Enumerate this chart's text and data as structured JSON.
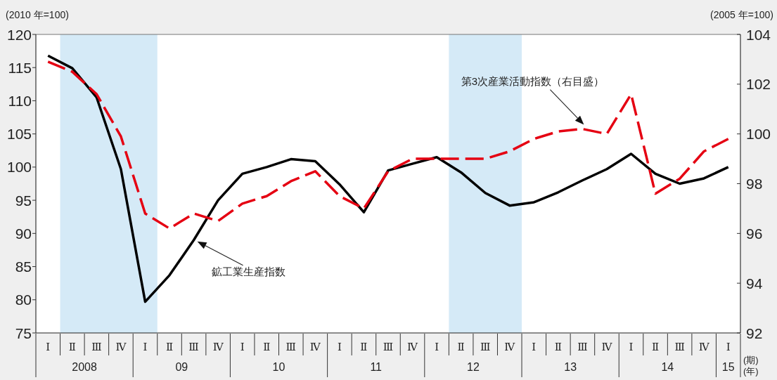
{
  "chart_data": {
    "type": "line",
    "ylabel": "(2010 年=100)",
    "y2label": "(2005 年=100)",
    "xlabel": "(期)",
    "categories": [
      "Ⅰ",
      "Ⅱ",
      "Ⅲ",
      "Ⅳ",
      "Ⅰ",
      "Ⅱ",
      "Ⅲ",
      "Ⅳ",
      "Ⅰ",
      "Ⅱ",
      "Ⅲ",
      "Ⅳ",
      "Ⅰ",
      "Ⅱ",
      "Ⅲ",
      "Ⅳ",
      "Ⅰ",
      "Ⅱ",
      "Ⅲ",
      "Ⅳ",
      "Ⅰ",
      "Ⅱ",
      "Ⅲ",
      "Ⅳ",
      "Ⅰ",
      "Ⅱ",
      "Ⅲ",
      "Ⅳ",
      "Ⅰ"
    ],
    "series": [
      {
        "name": "鉱工業生産指数",
        "color": "#000000",
        "line_style": "solid",
        "values": [
          116.8,
          114.9,
          110.5,
          99.7,
          79.7,
          83.7,
          89.0,
          95.0,
          99.0,
          100.0,
          101.2,
          100.9,
          97.4,
          93.2,
          99.5,
          100.5,
          101.5,
          99.2,
          96.1,
          94.2,
          94.7,
          96.2,
          98.0,
          99.7,
          102.0,
          99.0,
          97.5,
          98.3,
          100.0
        ]
      },
      {
        "name": "第3次産業活動指数（右目盛）",
        "color": "#e50012",
        "line_style": "dashed",
        "axis": "y2",
        "values": [
          102.9,
          102.5,
          101.6,
          99.9,
          96.8,
          96.2,
          96.8,
          96.5,
          97.2,
          97.5,
          98.1,
          98.5,
          97.5,
          97.0,
          98.5,
          99.0,
          99.0,
          99.0,
          99.0,
          99.3,
          99.8,
          100.1,
          100.2,
          100.0,
          101.6,
          97.6,
          98.2,
          99.3,
          99.8
        ]
      }
    ],
    "ylim": [
      75,
      120
    ],
    "yticks": [
      75,
      80,
      85,
      90,
      95,
      100,
      105,
      110,
      115,
      120
    ],
    "y2lim": [
      92,
      104
    ],
    "y2ticks": [
      92,
      94,
      96,
      98,
      100,
      102,
      104
    ],
    "annotations": [
      "2008",
      "09",
      "10",
      "11",
      "12",
      "13",
      "14",
      "15",
      "(年)"
    ]
  }
}
